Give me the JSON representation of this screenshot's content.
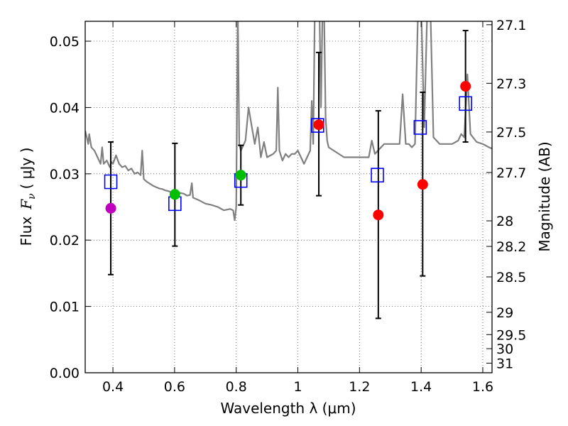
{
  "chart_data": {
    "type": "scatter",
    "xlabel": "Wavelength  λ (μm)",
    "ylabel_parts": {
      "flux": "Flux",
      "symbol": "F",
      "subscript": "ν",
      "units": "( μJy )"
    },
    "y2label": "Magnitude (AB)",
    "xlim": [
      0.31,
      1.63
    ],
    "ylim": [
      0.0,
      0.053
    ],
    "grid": true,
    "x_ticks": [
      0.4,
      0.6,
      0.8,
      1.0,
      1.2,
      1.4,
      1.6
    ],
    "x_tick_labels": [
      "0.4",
      "0.6",
      "0.8",
      "1",
      "1.2",
      "1.4",
      "1.6"
    ],
    "y_ticks": [
      0.0,
      0.01,
      0.02,
      0.03,
      0.04,
      0.05
    ],
    "y_tick_labels": [
      "0.00",
      "0.01",
      "0.02",
      "0.03",
      "0.04",
      "0.05"
    ],
    "mag_ticks": [
      27.1,
      27.3,
      27.5,
      27.7,
      28,
      28.2,
      28.5,
      29,
      29.5,
      30,
      31
    ],
    "mag_tick_labels": [
      "27.1",
      "27.3",
      "27.5",
      "27.7",
      "28",
      "28.2",
      "28.5",
      "29",
      "29.5",
      "30",
      "31"
    ],
    "observed": [
      {
        "x": 0.393,
        "y": 0.0248,
        "err": [
          0.0148,
          0.0348
        ],
        "color": "#bf00bf"
      },
      {
        "x": 0.601,
        "y": 0.0269,
        "err": [
          0.0191,
          0.0346
        ],
        "color": "#00bf00"
      },
      {
        "x": 0.815,
        "y": 0.0298,
        "err": [
          0.0253,
          0.0343
        ],
        "color": "#00bf00"
      },
      {
        "x": 1.068,
        "y": 0.0374,
        "err": [
          0.0267,
          0.0483
        ],
        "color": "#ff0000"
      },
      {
        "x": 1.261,
        "y": 0.0238,
        "err": [
          0.0082,
          0.0395
        ],
        "color": "#ff0000"
      },
      {
        "x": 1.405,
        "y": 0.0284,
        "err": [
          0.0146,
          0.0423
        ],
        "color": "#ff0000"
      },
      {
        "x": 1.544,
        "y": 0.0432,
        "err": [
          0.0348,
          0.0516
        ],
        "color": "#ff0000"
      }
    ],
    "model_photometry": [
      {
        "x": 0.393,
        "y": 0.0288
      },
      {
        "x": 0.601,
        "y": 0.0255
      },
      {
        "x": 0.815,
        "y": 0.029
      },
      {
        "x": 1.064,
        "y": 0.0373
      },
      {
        "x": 1.258,
        "y": 0.0298
      },
      {
        "x": 1.397,
        "y": 0.037
      },
      {
        "x": 1.544,
        "y": 0.0406
      }
    ],
    "model_spectrum": {
      "color": "#808080",
      "x": [
        0.31,
        0.315,
        0.32,
        0.323,
        0.33,
        0.34,
        0.345,
        0.35,
        0.36,
        0.365,
        0.37,
        0.38,
        0.39,
        0.395,
        0.4,
        0.41,
        0.42,
        0.43,
        0.44,
        0.45,
        0.46,
        0.47,
        0.48,
        0.49,
        0.495,
        0.5,
        0.51,
        0.52,
        0.53,
        0.54,
        0.55,
        0.56,
        0.57,
        0.58,
        0.59,
        0.6,
        0.61,
        0.62,
        0.63,
        0.64,
        0.65,
        0.656,
        0.66,
        0.67,
        0.68,
        0.7,
        0.72,
        0.74,
        0.76,
        0.78,
        0.79,
        0.795,
        0.8,
        0.805,
        0.81,
        0.815,
        0.82,
        0.83,
        0.84,
        0.86,
        0.87,
        0.88,
        0.89,
        0.9,
        0.92,
        0.93,
        0.935,
        0.94,
        0.95,
        0.96,
        0.97,
        0.98,
        0.99,
        1.0,
        1.01,
        1.02,
        1.03,
        1.04,
        1.045,
        1.05,
        1.055,
        1.06,
        1.07,
        1.075,
        1.08,
        1.085,
        1.09,
        1.095,
        1.1,
        1.15,
        1.2,
        1.23,
        1.24,
        1.25,
        1.26,
        1.28,
        1.3,
        1.33,
        1.34,
        1.35,
        1.36,
        1.37,
        1.38,
        1.39,
        1.4,
        1.41,
        1.42,
        1.43,
        1.44,
        1.46,
        1.48,
        1.5,
        1.52,
        1.53,
        1.54,
        1.55,
        1.56,
        1.58,
        1.6,
        1.62,
        1.63
      ],
      "y": [
        0.0365,
        0.0355,
        0.0345,
        0.036,
        0.034,
        0.0335,
        0.033,
        0.0325,
        0.0315,
        0.034,
        0.0315,
        0.032,
        0.031,
        0.0318,
        0.0315,
        0.0328,
        0.0315,
        0.031,
        0.0312,
        0.0305,
        0.0308,
        0.03,
        0.0302,
        0.0298,
        0.0335,
        0.0292,
        0.0288,
        0.0285,
        0.0282,
        0.028,
        0.0278,
        0.0277,
        0.0275,
        0.0274,
        0.0272,
        0.0272,
        0.0272,
        0.0271,
        0.027,
        0.0267,
        0.0268,
        0.0286,
        0.0264,
        0.0262,
        0.026,
        0.0255,
        0.0253,
        0.025,
        0.0245,
        0.0247,
        0.0245,
        0.023,
        0.025,
        0.055,
        0.0345,
        0.0335,
        0.034,
        0.035,
        0.04,
        0.0345,
        0.037,
        0.0325,
        0.0348,
        0.0325,
        0.033,
        0.0335,
        0.043,
        0.0335,
        0.032,
        0.033,
        0.0325,
        0.033,
        0.033,
        0.0335,
        0.0325,
        0.0315,
        0.0325,
        0.0335,
        0.041,
        0.0345,
        0.055,
        0.055,
        0.055,
        0.04,
        0.055,
        0.055,
        0.0385,
        0.035,
        0.034,
        0.0325,
        0.0325,
        0.0325,
        0.035,
        0.033,
        0.0335,
        0.0345,
        0.0345,
        0.0345,
        0.042,
        0.0345,
        0.0345,
        0.034,
        0.0345,
        0.055,
        0.055,
        0.037,
        0.055,
        0.055,
        0.0355,
        0.0345,
        0.0345,
        0.0345,
        0.035,
        0.036,
        0.0355,
        0.045,
        0.036,
        0.0348,
        0.0345,
        0.034,
        0.0338
      ]
    }
  }
}
